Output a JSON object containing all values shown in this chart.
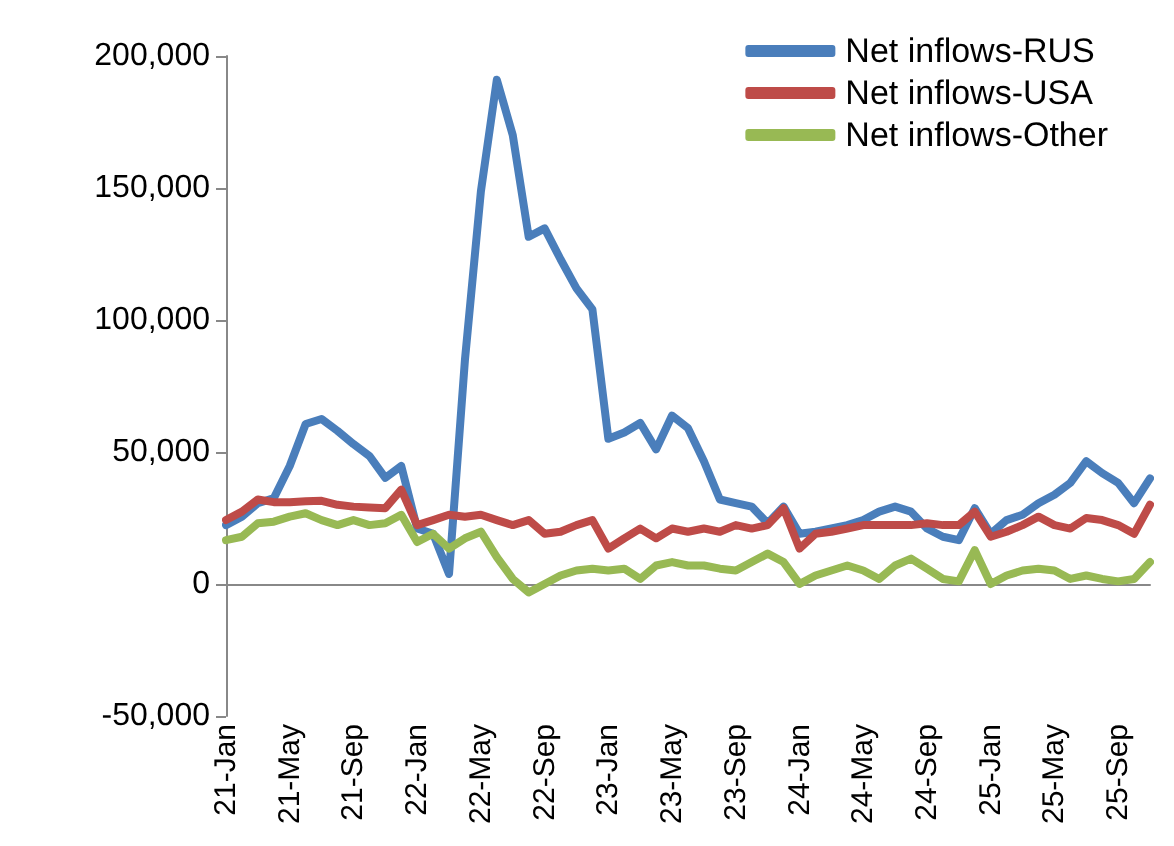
{
  "chart_data": {
    "type": "line",
    "categories": [
      "21-Jan",
      null,
      null,
      null,
      "21-May",
      null,
      null,
      null,
      "21-Sep",
      null,
      null,
      null,
      "22-Jan",
      null,
      null,
      null,
      "22-May",
      null,
      null,
      null,
      "22-Sep",
      null,
      null,
      null,
      "23-Jan",
      null,
      null,
      null,
      "23-May",
      null,
      null,
      null,
      "23-Sep",
      null,
      null,
      null,
      "24-Jan",
      null,
      null,
      null,
      "24-May",
      null,
      null,
      null,
      "24-Sep",
      null,
      null,
      null,
      "25-Jan",
      null,
      null,
      null,
      "25-May",
      null,
      null,
      null,
      "25-Sep",
      null,
      null
    ],
    "series": [
      {
        "name": "Net inflows-RUS",
        "color": "#4a7ebb",
        "values": [
          22300,
          25500,
          30600,
          32500,
          44700,
          60600,
          62500,
          58000,
          53000,
          48500,
          40200,
          44700,
          21000,
          19000,
          3800,
          85000,
          148700,
          191000,
          170000,
          131500,
          134700,
          123000,
          112000,
          104000,
          55000,
          57400,
          61000,
          51000,
          63800,
          59000,
          46500,
          32000,
          30600,
          29300,
          23000,
          29300,
          19000,
          19800,
          21000,
          22300,
          24200,
          27400,
          29300,
          27400,
          21000,
          17900,
          16600,
          28700,
          19000,
          24200,
          26200,
          30600,
          33800,
          38300,
          46500,
          42000,
          38300,
          30600,
          40000
        ]
      },
      {
        "name": "Net inflows-USA",
        "color": "#be4b48",
        "values": [
          24200,
          27400,
          32000,
          31000,
          31000,
          31300,
          31500,
          30000,
          29300,
          29000,
          28700,
          35700,
          22300,
          24200,
          26200,
          25500,
          26200,
          24200,
          22300,
          24200,
          19000,
          19800,
          22300,
          24200,
          13400,
          17300,
          21000,
          17300,
          21000,
          19800,
          21000,
          19800,
          22300,
          21000,
          22300,
          28700,
          13400,
          19000,
          19800,
          21000,
          22300,
          22300,
          22300,
          22300,
          23000,
          22300,
          22300,
          27400,
          17900,
          19800,
          22300,
          25500,
          22300,
          21000,
          25000,
          24200,
          22300,
          19000,
          30000
        ]
      },
      {
        "name": "Net inflows-Other",
        "color": "#98b954",
        "values": [
          16600,
          17900,
          23000,
          23600,
          25500,
          26800,
          24200,
          22300,
          24200,
          22300,
          23000,
          26200,
          15900,
          19000,
          13400,
          17300,
          19800,
          10200,
          1900,
          -3200,
          0,
          3200,
          5100,
          5800,
          5100,
          5800,
          1900,
          7000,
          8300,
          7000,
          7000,
          5800,
          5100,
          8300,
          11500,
          8300,
          0,
          3200,
          5100,
          7000,
          5100,
          1900,
          7000,
          9600,
          5800,
          1900,
          1000,
          12800,
          0,
          3200,
          5100,
          5800,
          5100,
          1900,
          3200,
          1900,
          1000,
          1900,
          8300
        ]
      }
    ],
    "ylim": [
      -50000,
      200000
    ],
    "yticks": [
      {
        "value": -50000,
        "label": "-50,000"
      },
      0,
      {
        "value": 50000,
        "label": "50,000"
      },
      {
        "value": 100000,
        "label": "100,000"
      },
      {
        "value": 150000,
        "label": "150,000"
      },
      {
        "value": 200000,
        "label": "200,000"
      }
    ],
    "legend": "top right",
    "marker": "none",
    "line_style": "solid"
  }
}
